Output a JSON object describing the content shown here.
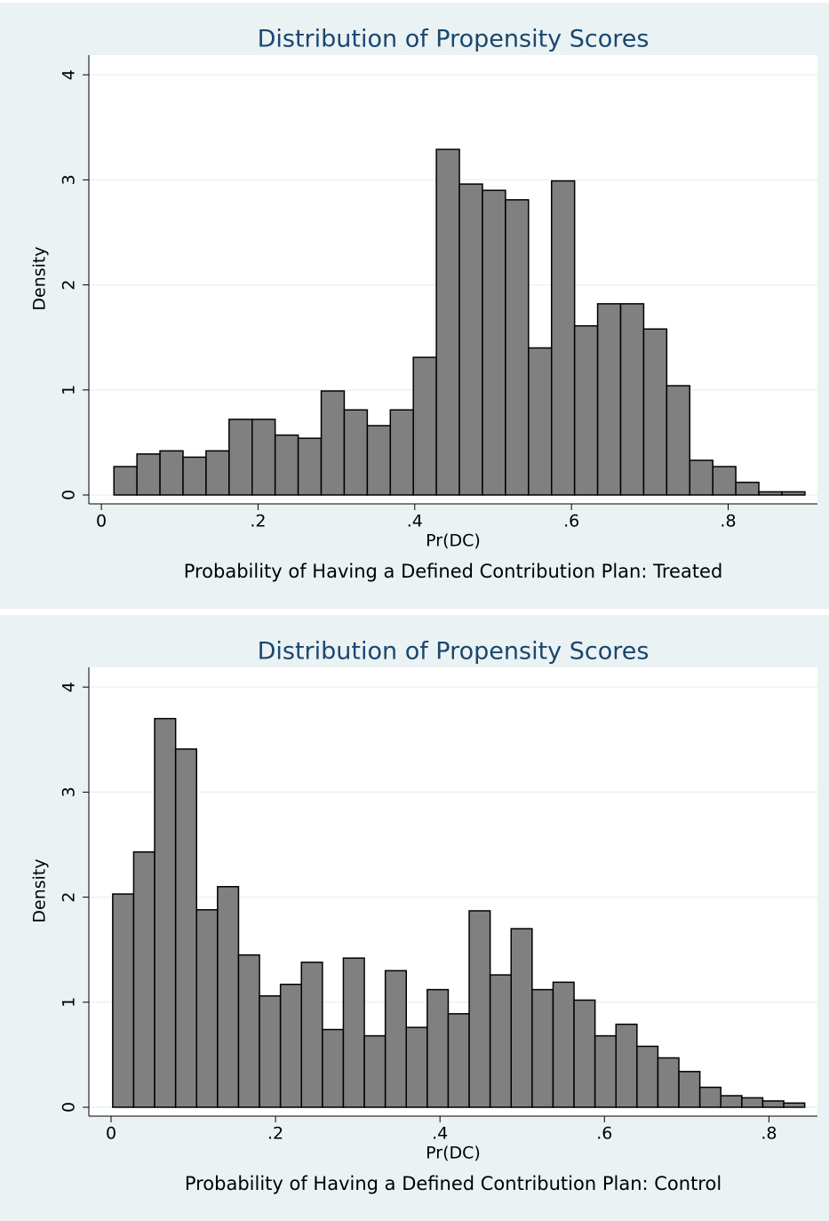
{
  "chart_data": [
    {
      "type": "histogram",
      "title": "Distribution of Propensity Scores",
      "x_label": "Pr(DC)",
      "y_label": "Density",
      "note": "Probability of Having a Defined Contribution Plan: Treated",
      "color": "#808080",
      "grid": true,
      "bins": [
        0.016,
        0.0454,
        0.0748,
        0.1042,
        0.1336,
        0.163,
        0.1924,
        0.2218,
        0.2512,
        0.2806,
        0.31,
        0.3394,
        0.3688,
        0.3982,
        0.4276,
        0.457,
        0.4864,
        0.5158,
        0.5452,
        0.5746,
        0.604,
        0.6334,
        0.6628,
        0.6922,
        0.7216,
        0.751,
        0.7804,
        0.8098,
        0.8392,
        0.8686,
        0.898
      ],
      "values": [
        0.27,
        0.39,
        0.42,
        0.36,
        0.42,
        0.72,
        0.72,
        0.57,
        0.54,
        0.99,
        0.81,
        0.66,
        0.81,
        1.31,
        3.29,
        2.96,
        2.9,
        2.81,
        1.4,
        2.99,
        1.61,
        1.82,
        1.82,
        1.58,
        1.04,
        0.33,
        0.27,
        0.12,
        0.03,
        0.03
      ],
      "xlim": [
        -0.016,
        0.914
      ],
      "ylim": [
        0,
        4.12
      ],
      "xticks": [
        0,
        {
          "value": 0.2,
          "label": ".2"
        },
        {
          "value": 0.4,
          "label": ".4"
        },
        {
          "value": 0.6,
          "label": ".6"
        },
        {
          "value": 0.8,
          "label": ".8"
        }
      ],
      "yticks": [
        0,
        1,
        2,
        3,
        4
      ]
    },
    {
      "type": "histogram",
      "title": "Distribution of Propensity Scores",
      "x_label": "Pr(DC)",
      "y_label": "Density",
      "note": "Probability of Having a Defined Contribution Plan: Control",
      "color": "#808080",
      "grid": true,
      "bins": [
        0.002,
        0.0275,
        0.053,
        0.0785,
        0.104,
        0.1295,
        0.155,
        0.1805,
        0.206,
        0.2315,
        0.257,
        0.2825,
        0.308,
        0.3335,
        0.359,
        0.3845,
        0.41,
        0.4355,
        0.461,
        0.4865,
        0.512,
        0.5375,
        0.563,
        0.5885,
        0.614,
        0.6395,
        0.665,
        0.6905,
        0.716,
        0.7415,
        0.767,
        0.7925,
        0.818,
        0.8435
      ],
      "values": [
        2.03,
        2.43,
        3.7,
        3.41,
        1.88,
        2.1,
        1.45,
        1.06,
        1.17,
        1.38,
        0.74,
        1.42,
        0.68,
        1.3,
        0.76,
        1.12,
        0.89,
        1.87,
        1.26,
        1.7,
        1.12,
        1.19,
        1.02,
        0.68,
        0.79,
        0.58,
        0.47,
        0.34,
        0.19,
        0.11,
        0.09,
        0.06,
        0.04
      ],
      "xlim": [
        -0.027,
        0.859
      ],
      "ylim": [
        0,
        4.12
      ],
      "xticks": [
        0,
        {
          "value": 0.2,
          "label": ".2"
        },
        {
          "value": 0.4,
          "label": ".4"
        },
        {
          "value": 0.6,
          "label": ".6"
        },
        {
          "value": 0.8,
          "label": ".8"
        }
      ],
      "yticks": [
        0,
        1,
        2,
        3,
        4
      ]
    }
  ]
}
